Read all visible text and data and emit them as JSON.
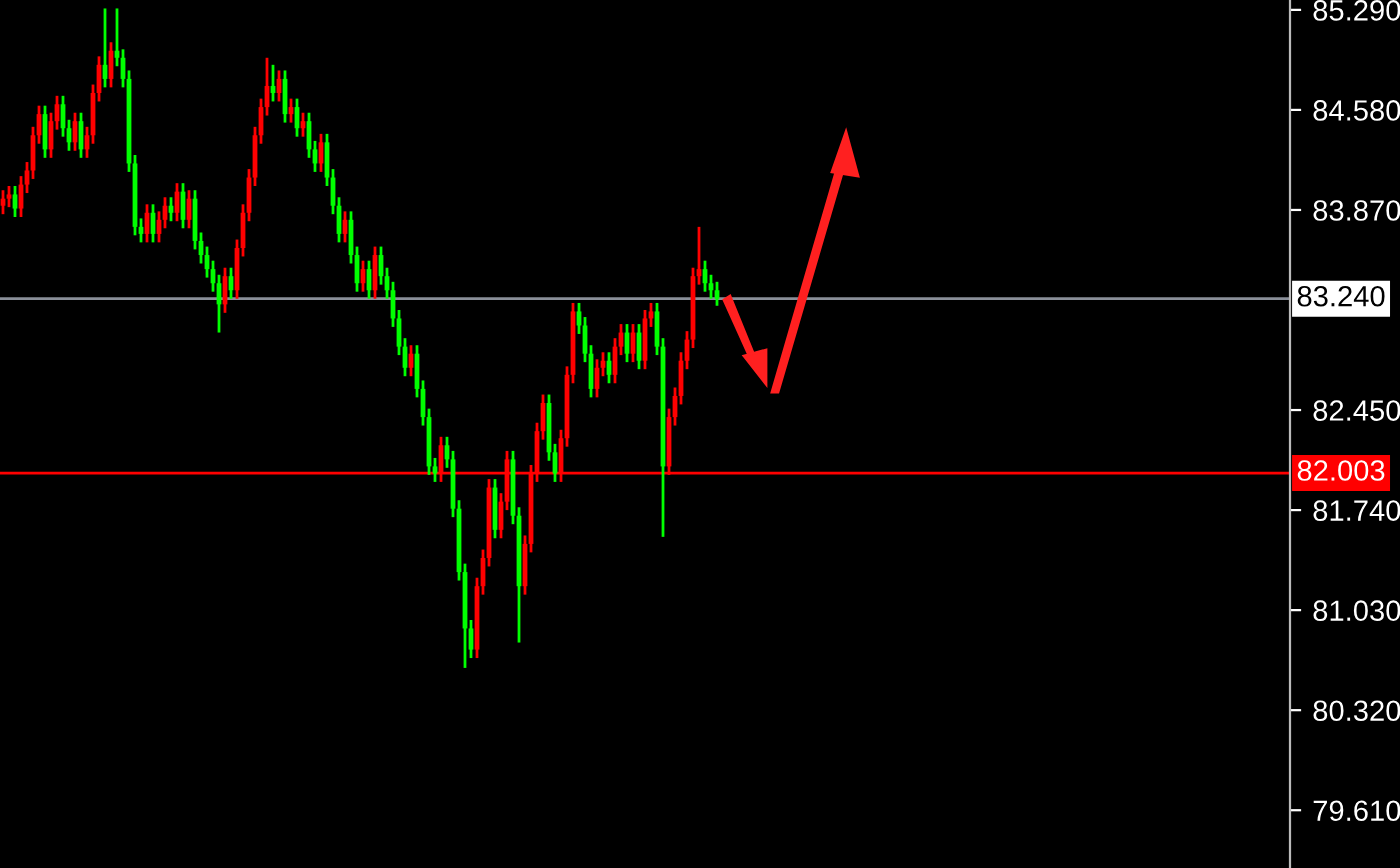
{
  "chart_data": {
    "type": "candlestick",
    "categories": [
      null,
      null,
      null,
      null,
      null,
      null,
      null,
      null,
      null,
      null,
      null,
      null,
      null,
      null,
      null,
      null,
      null,
      null,
      null,
      null,
      null,
      null,
      null,
      null,
      null,
      null,
      null,
      null,
      null,
      null,
      null,
      null,
      null,
      null,
      null,
      null,
      null,
      null,
      null,
      null,
      null,
      null,
      null,
      null,
      null,
      null,
      null,
      null,
      null,
      null,
      null,
      null,
      null,
      null,
      null,
      null,
      null,
      null,
      null,
      null,
      null,
      null,
      null,
      null,
      null,
      null,
      null,
      null,
      null,
      null,
      null,
      null,
      null,
      null,
      null,
      null,
      null,
      null,
      null,
      null,
      null,
      null,
      null,
      null,
      null,
      null,
      null,
      null,
      null,
      null,
      null,
      null,
      null,
      null,
      null,
      null,
      null,
      null,
      null,
      null,
      null,
      null,
      null,
      null,
      null,
      null,
      null,
      null,
      null,
      null,
      null,
      null,
      null,
      null,
      null,
      null,
      null,
      null,
      null,
      null,
      null,
      null,
      null,
      null,
      null,
      null,
      null,
      null,
      null,
      null,
      null,
      null,
      null,
      null,
      null,
      null,
      null,
      null,
      null,
      null,
      null,
      null,
      null,
      null,
      null,
      null,
      null,
      null,
      null,
      null,
      null,
      null,
      null,
      null,
      null,
      null,
      null,
      null,
      null,
      null,
      null,
      null,
      null,
      null,
      null,
      null,
      null,
      null,
      null,
      null,
      null,
      null,
      null,
      null,
      null,
      null,
      null,
      null,
      null,
      null,
      null,
      null,
      null,
      null,
      null,
      null,
      null,
      null,
      null,
      null,
      null,
      null,
      null,
      null,
      null,
      null,
      null,
      null,
      null,
      null,
      null,
      null,
      null,
      null,
      null,
      null,
      null,
      null,
      null,
      null,
      null,
      null,
      null,
      null,
      null
    ],
    "ohlc": [
      [
        83.9,
        84.01,
        83.84,
        83.95
      ],
      [
        83.95,
        84.04,
        83.89,
        83.98
      ],
      [
        83.98,
        84.04,
        83.82,
        83.88
      ],
      [
        83.88,
        84.11,
        83.82,
        84.05
      ],
      [
        84.05,
        84.21,
        83.99,
        84.15
      ],
      [
        84.15,
        84.46,
        84.09,
        84.4
      ],
      [
        84.4,
        84.61,
        84.34,
        84.55
      ],
      [
        84.55,
        84.61,
        84.24,
        84.3
      ],
      [
        84.3,
        84.56,
        84.24,
        84.5
      ],
      [
        84.5,
        84.68,
        84.44,
        84.62
      ],
      [
        84.62,
        84.68,
        84.39,
        84.45
      ],
      [
        84.45,
        84.51,
        84.29,
        84.35
      ],
      [
        84.35,
        84.56,
        84.29,
        84.5
      ],
      [
        84.5,
        84.56,
        84.24,
        84.3
      ],
      [
        84.3,
        84.46,
        84.24,
        84.4
      ],
      [
        84.4,
        84.76,
        84.34,
        84.7
      ],
      [
        84.7,
        84.96,
        84.64,
        84.9
      ],
      [
        84.9,
        85.3,
        84.74,
        84.8
      ],
      [
        84.8,
        85.06,
        84.74,
        85.0
      ],
      [
        85.0,
        85.3,
        84.89,
        84.95
      ],
      [
        84.95,
        85.01,
        84.74,
        84.8
      ],
      [
        84.8,
        84.86,
        84.14,
        84.2
      ],
      [
        84.2,
        84.26,
        83.69,
        83.75
      ],
      [
        83.75,
        83.81,
        83.64,
        83.7
      ],
      [
        83.7,
        83.91,
        83.64,
        83.85
      ],
      [
        83.85,
        83.91,
        83.64,
        83.7
      ],
      [
        83.7,
        83.86,
        83.64,
        83.8
      ],
      [
        83.8,
        83.96,
        83.74,
        83.9
      ],
      [
        83.9,
        83.96,
        83.79,
        83.85
      ],
      [
        83.85,
        84.06,
        83.79,
        84.0
      ],
      [
        84.0,
        84.06,
        83.74,
        83.8
      ],
      [
        83.8,
        84.01,
        83.74,
        83.95
      ],
      [
        83.95,
        84.01,
        83.59,
        83.65
      ],
      [
        83.65,
        83.71,
        83.49,
        83.55
      ],
      [
        83.55,
        83.61,
        83.39,
        83.45
      ],
      [
        83.45,
        83.51,
        83.29,
        83.35
      ],
      [
        83.35,
        83.41,
        83.0,
        83.2
      ],
      [
        83.2,
        83.46,
        83.14,
        83.4
      ],
      [
        83.4,
        83.46,
        83.24,
        83.3
      ],
      [
        83.3,
        83.66,
        83.24,
        83.6
      ],
      [
        83.6,
        83.91,
        83.54,
        83.85
      ],
      [
        83.85,
        84.16,
        83.79,
        84.1
      ],
      [
        84.1,
        84.46,
        84.04,
        84.4
      ],
      [
        84.4,
        84.66,
        84.34,
        84.6
      ],
      [
        84.6,
        84.95,
        84.54,
        84.75
      ],
      [
        84.75,
        84.9,
        84.64,
        84.7
      ],
      [
        84.7,
        84.86,
        84.64,
        84.8
      ],
      [
        84.8,
        84.86,
        84.49,
        84.55
      ],
      [
        84.55,
        84.66,
        84.49,
        84.6
      ],
      [
        84.6,
        84.66,
        84.39,
        84.45
      ],
      [
        84.45,
        84.56,
        84.39,
        84.5
      ],
      [
        84.5,
        84.56,
        84.24,
        84.3
      ],
      [
        84.3,
        84.36,
        84.14,
        84.2
      ],
      [
        84.2,
        84.41,
        84.14,
        84.35
      ],
      [
        84.35,
        84.41,
        84.04,
        84.1
      ],
      [
        84.1,
        84.16,
        83.84,
        83.9
      ],
      [
        83.9,
        83.96,
        83.64,
        83.7
      ],
      [
        83.7,
        83.86,
        83.64,
        83.8
      ],
      [
        83.8,
        83.86,
        83.49,
        83.55
      ],
      [
        83.55,
        83.61,
        83.29,
        83.35
      ],
      [
        83.35,
        83.51,
        83.29,
        83.45
      ],
      [
        83.45,
        83.51,
        83.24,
        83.3
      ],
      [
        83.3,
        83.61,
        83.24,
        83.55
      ],
      [
        83.55,
        83.61,
        83.34,
        83.4
      ],
      [
        83.4,
        83.46,
        83.24,
        83.3
      ],
      [
        83.3,
        83.36,
        83.04,
        83.1
      ],
      [
        83.1,
        83.16,
        82.84,
        82.9
      ],
      [
        82.9,
        82.96,
        82.69,
        82.75
      ],
      [
        82.75,
        82.91,
        82.69,
        82.85
      ],
      [
        82.85,
        82.91,
        82.54,
        82.6
      ],
      [
        82.6,
        82.66,
        82.34,
        82.4
      ],
      [
        82.4,
        82.46,
        81.99,
        82.05
      ],
      [
        82.05,
        82.11,
        81.94,
        82.0
      ],
      [
        82.0,
        82.26,
        81.94,
        82.2
      ],
      [
        82.2,
        82.26,
        82.04,
        82.1
      ],
      [
        82.1,
        82.16,
        81.69,
        81.75
      ],
      [
        81.75,
        81.81,
        81.24,
        81.3
      ],
      [
        81.3,
        81.36,
        80.62,
        80.9
      ],
      [
        80.9,
        80.96,
        80.69,
        80.75
      ],
      [
        80.75,
        81.26,
        80.69,
        81.2
      ],
      [
        81.2,
        81.46,
        81.14,
        81.4
      ],
      [
        81.4,
        81.96,
        81.34,
        81.9
      ],
      [
        81.9,
        81.96,
        81.54,
        81.6
      ],
      [
        81.6,
        81.86,
        81.54,
        81.8
      ],
      [
        81.8,
        82.16,
        81.74,
        82.1
      ],
      [
        82.1,
        82.16,
        81.64,
        81.7
      ],
      [
        81.7,
        81.76,
        80.8,
        81.2
      ],
      [
        81.2,
        81.56,
        81.14,
        81.5
      ],
      [
        81.5,
        82.06,
        81.44,
        82.0
      ],
      [
        82.0,
        82.36,
        81.94,
        82.3
      ],
      [
        82.3,
        82.56,
        82.24,
        82.5
      ],
      [
        82.5,
        82.56,
        82.09,
        82.15
      ],
      [
        82.15,
        82.21,
        81.94,
        82.0
      ],
      [
        82.0,
        82.31,
        81.94,
        82.25
      ],
      [
        82.25,
        82.76,
        82.19,
        82.7
      ],
      [
        82.7,
        83.21,
        82.64,
        83.15
      ],
      [
        83.15,
        83.21,
        82.99,
        83.05
      ],
      [
        83.05,
        83.11,
        82.79,
        82.85
      ],
      [
        82.85,
        82.91,
        82.54,
        82.6
      ],
      [
        82.6,
        82.81,
        82.54,
        82.75
      ],
      [
        82.75,
        82.86,
        82.69,
        82.8
      ],
      [
        82.8,
        82.86,
        82.64,
        82.7
      ],
      [
        82.7,
        82.96,
        82.64,
        82.9
      ],
      [
        82.9,
        83.06,
        82.84,
        83.0
      ],
      [
        83.0,
        83.06,
        82.79,
        82.85
      ],
      [
        82.85,
        83.06,
        82.79,
        83.0
      ],
      [
        83.0,
        83.06,
        82.74,
        82.8
      ],
      [
        82.8,
        83.16,
        82.74,
        83.1
      ],
      [
        83.1,
        83.21,
        83.04,
        83.15
      ],
      [
        83.15,
        83.21,
        82.84,
        82.9
      ],
      [
        82.9,
        82.96,
        81.55,
        82.05
      ],
      [
        82.05,
        82.46,
        81.99,
        82.4
      ],
      [
        82.4,
        82.61,
        82.34,
        82.55
      ],
      [
        82.55,
        82.86,
        82.49,
        82.8
      ],
      [
        82.8,
        83.01,
        82.74,
        82.95
      ],
      [
        82.95,
        83.46,
        82.89,
        83.4
      ],
      [
        83.4,
        83.75,
        83.34,
        83.45
      ],
      [
        83.45,
        83.51,
        83.29,
        83.35
      ],
      [
        83.35,
        83.41,
        83.24,
        83.3
      ],
      [
        83.3,
        83.36,
        83.19,
        83.24
      ],
      null,
      null,
      null,
      null,
      null,
      null,
      null,
      null,
      null,
      null,
      null,
      null,
      null,
      null,
      null,
      null,
      null,
      null,
      null,
      null,
      null,
      null,
      null,
      null,
      null,
      null,
      null,
      null,
      null,
      null,
      null,
      null,
      null,
      null,
      null,
      null,
      null,
      null,
      null,
      null,
      null,
      null,
      null,
      null,
      null,
      null,
      null,
      null,
      null,
      null,
      null,
      null,
      null,
      null,
      null,
      null,
      null,
      null,
      null,
      null,
      null,
      null,
      null,
      null,
      null,
      null,
      null,
      null,
      null,
      null,
      null,
      null,
      null,
      null,
      null,
      null,
      null,
      null,
      null,
      null,
      null,
      null,
      null,
      null,
      null,
      null,
      null,
      null,
      null,
      null,
      null,
      null,
      null,
      null,
      null
    ],
    "colors": [
      "#ff0000",
      "#ff0000",
      "#00ff00",
      "#ff0000",
      "#ff0000",
      "#ff0000",
      "#ff0000",
      "#00ff00",
      "#ff0000",
      "#ff0000",
      "#00ff00",
      "#00ff00",
      "#ff0000",
      "#00ff00",
      "#ff0000",
      "#ff0000",
      "#ff0000",
      "#00ff00",
      "#ff0000",
      "#00ff00",
      "#00ff00",
      "#00ff00",
      "#00ff00",
      "#00ff00",
      "#ff0000",
      "#00ff00",
      "#ff0000",
      "#ff0000",
      "#00ff00",
      "#ff0000",
      "#00ff00",
      "#ff0000",
      "#00ff00",
      "#00ff00",
      "#00ff00",
      "#00ff00",
      "#00ff00",
      "#ff0000",
      "#00ff00",
      "#ff0000",
      "#ff0000",
      "#ff0000",
      "#ff0000",
      "#ff0000",
      "#ff0000",
      "#00ff00",
      "#ff0000",
      "#00ff00",
      "#ff0000",
      "#00ff00",
      "#ff0000",
      "#00ff00",
      "#00ff00",
      "#ff0000",
      "#00ff00",
      "#00ff00",
      "#00ff00",
      "#ff0000",
      "#00ff00",
      "#00ff00",
      "#ff0000",
      "#00ff00",
      "#ff0000",
      "#00ff00",
      "#00ff00",
      "#00ff00",
      "#00ff00",
      "#00ff00",
      "#ff0000",
      "#00ff00",
      "#00ff00",
      "#00ff00",
      "#00ff00",
      "#ff0000",
      "#00ff00",
      "#00ff00",
      "#00ff00",
      "#00ff00",
      "#00ff00",
      "#ff0000",
      "#ff0000",
      "#ff0000",
      "#00ff00",
      "#ff0000",
      "#ff0000",
      "#00ff00",
      "#00ff00",
      "#ff0000",
      "#ff0000",
      "#ff0000",
      "#ff0000",
      "#00ff00",
      "#00ff00",
      "#ff0000",
      "#ff0000",
      "#ff0000",
      "#00ff00",
      "#00ff00",
      "#00ff00",
      "#ff0000",
      "#ff0000",
      "#00ff00",
      "#ff0000",
      "#ff0000",
      "#00ff00",
      "#ff0000",
      "#00ff00",
      "#ff0000",
      "#ff0000",
      "#00ff00",
      "#00ff00",
      "#ff0000",
      "#ff0000",
      "#ff0000",
      "#ff0000",
      "#ff0000",
      "#ff0000",
      "#00ff00",
      "#00ff00",
      "#00ff00",
      null,
      null,
      null,
      null,
      null,
      null,
      null,
      null,
      null,
      null,
      null,
      null,
      null,
      null,
      null,
      null,
      null,
      null,
      null,
      null,
      null,
      null,
      null,
      null,
      null,
      null,
      null,
      null,
      null,
      null,
      null,
      null,
      null,
      null,
      null,
      null,
      null,
      null,
      null,
      null,
      null,
      null,
      null,
      null,
      null,
      null,
      null,
      null,
      null,
      null,
      null,
      null,
      null,
      null,
      null,
      null,
      null,
      null,
      null,
      null,
      null,
      null,
      null,
      null,
      null,
      null,
      null,
      null,
      null,
      null,
      null,
      null,
      null,
      null,
      null,
      null,
      null,
      null,
      null,
      null,
      null,
      null,
      null,
      null,
      null,
      null,
      null,
      null,
      null,
      null,
      null,
      null,
      null,
      null,
      null
    ],
    "ylim": [
      79.2,
      85.36
    ],
    "yticks": [
      {
        "value": 79.61,
        "label": "79.610"
      },
      {
        "value": 80.32,
        "label": "80.320"
      },
      {
        "value": 81.03,
        "label": "81.030"
      },
      {
        "value": 81.74,
        "label": "81.740"
      },
      {
        "value": 82.45,
        "label": "82.450"
      },
      {
        "value": 83.87,
        "label": "83.870"
      },
      {
        "value": 84.58,
        "label": "84.580"
      },
      {
        "value": 85.29,
        "label": "85.290"
      }
    ],
    "ref_lines": [
      {
        "axis": "y",
        "value": 83.24,
        "label": "83.240",
        "color": "#8a8f99"
      },
      {
        "axis": "y",
        "value": 82.003,
        "label": "82.003",
        "color": "#ff0000"
      }
    ],
    "grid": false,
    "tick_labels": "y"
  }
}
